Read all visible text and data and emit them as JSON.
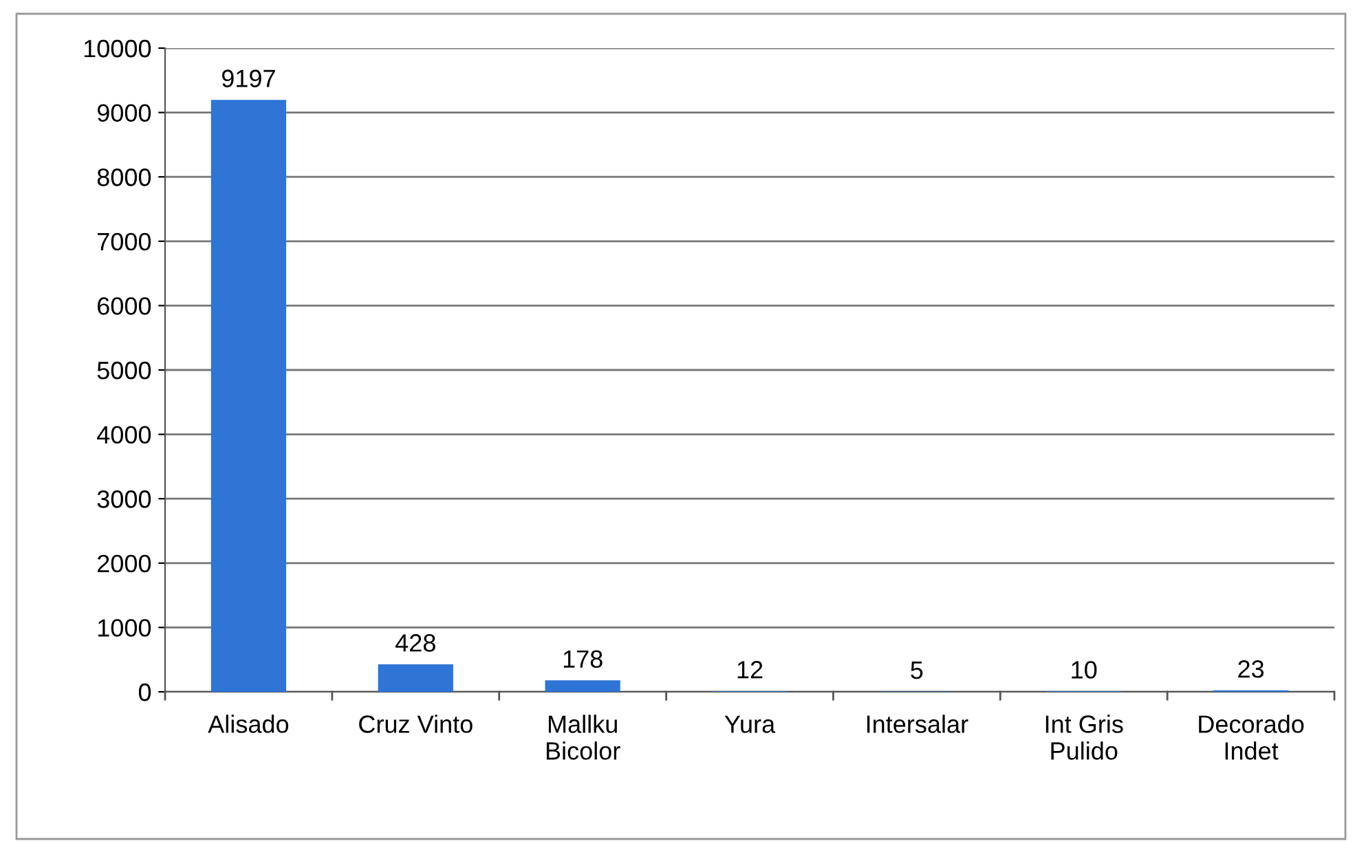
{
  "chart_data": {
    "type": "bar",
    "categories": [
      "Alisado",
      "Cruz Vinto",
      "Mallku\nBicolor",
      "Yura",
      "Intersalar",
      "Int Gris\nPulido",
      "Decorado\nIndet"
    ],
    "values": [
      9197,
      428,
      178,
      12,
      5,
      10,
      23
    ],
    "color": "#2e75d6",
    "ylim": [
      0,
      10000
    ],
    "yticks": [
      0,
      1000,
      2000,
      3000,
      4000,
      5000,
      6000,
      7000,
      8000,
      9000,
      10000
    ],
    "grid": "y",
    "data_labels": true,
    "legend": false
  }
}
